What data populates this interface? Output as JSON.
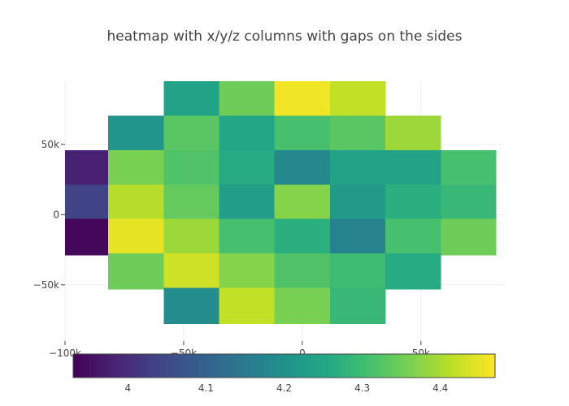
{
  "chart_data": {
    "type": "heatmap",
    "title": "heatmap with x/y/z columns with gaps on the sides",
    "x_tick_labels": [
      "−100k",
      "−50k",
      "0",
      "50k"
    ],
    "x_tick_values": [
      -100000,
      -50000,
      0,
      50000
    ],
    "y_tick_labels": [
      "50k",
      "0",
      "−50k"
    ],
    "y_tick_values": [
      50000,
      0,
      -50000
    ],
    "x_columns": [
      -93500,
      -70100,
      -46700,
      -23400,
      0,
      23400,
      46700,
      70100,
      93500
    ],
    "x_range": [
      -100000,
      85000
    ],
    "y_rows": [
      82000,
      57500,
      33000,
      8500,
      -16000,
      -40500,
      -65000
    ],
    "y_range": [
      -90000,
      95000
    ],
    "cell_x_step": 23400,
    "cell_y_step": 25800,
    "z_range": [
      3.93,
      4.47
    ],
    "colorbar_tick_labels": [
      "4",
      "4.1",
      "4.2",
      "4.3",
      "4.4"
    ],
    "colorbar_tick_values": [
      4.0,
      4.1,
      4.2,
      4.3,
      4.4
    ],
    "colorscale": "viridis",
    "cells": [
      {
        "x": -46700,
        "y": 82000,
        "z": 4.24
      },
      {
        "x": -23400,
        "y": 82000,
        "z": 4.35
      },
      {
        "x": 0,
        "y": 82000,
        "z": 4.46
      },
      {
        "x": 23400,
        "y": 82000,
        "z": 4.42
      },
      {
        "x": -70100,
        "y": 57500,
        "z": 4.21
      },
      {
        "x": -46700,
        "y": 57500,
        "z": 4.33
      },
      {
        "x": -23400,
        "y": 57500,
        "z": 4.25
      },
      {
        "x": 0,
        "y": 57500,
        "z": 4.31
      },
      {
        "x": 23400,
        "y": 57500,
        "z": 4.33
      },
      {
        "x": 46700,
        "y": 57500,
        "z": 4.39
      },
      {
        "x": -93500,
        "y": 33000,
        "z": 3.98
      },
      {
        "x": -70100,
        "y": 33000,
        "z": 4.36
      },
      {
        "x": -46700,
        "y": 33000,
        "z": 4.32
      },
      {
        "x": -23400,
        "y": 33000,
        "z": 4.26
      },
      {
        "x": 0,
        "y": 33000,
        "z": 4.18
      },
      {
        "x": 23400,
        "y": 33000,
        "z": 4.24
      },
      {
        "x": 46700,
        "y": 33000,
        "z": 4.24
      },
      {
        "x": 70100,
        "y": 33000,
        "z": 4.31
      },
      {
        "x": -93500,
        "y": 8500,
        "z": 4.04
      },
      {
        "x": -70100,
        "y": 8500,
        "z": 4.41
      },
      {
        "x": -46700,
        "y": 8500,
        "z": 4.34
      },
      {
        "x": -23400,
        "y": 8500,
        "z": 4.23
      },
      {
        "x": 0,
        "y": 8500,
        "z": 4.37
      },
      {
        "x": 23400,
        "y": 8500,
        "z": 4.22
      },
      {
        "x": 46700,
        "y": 8500,
        "z": 4.27
      },
      {
        "x": 70100,
        "y": 8500,
        "z": 4.29
      },
      {
        "x": -93500,
        "y": -16000,
        "z": 3.94
      },
      {
        "x": -70100,
        "y": -16000,
        "z": 4.45
      },
      {
        "x": -46700,
        "y": -16000,
        "z": 4.39
      },
      {
        "x": -23400,
        "y": -16000,
        "z": 4.31
      },
      {
        "x": 0,
        "y": -16000,
        "z": 4.27
      },
      {
        "x": 23400,
        "y": -16000,
        "z": 4.17
      },
      {
        "x": 46700,
        "y": -16000,
        "z": 4.31
      },
      {
        "x": 70100,
        "y": -16000,
        "z": 4.35
      },
      {
        "x": -70100,
        "y": -40500,
        "z": 4.35
      },
      {
        "x": -46700,
        "y": -40500,
        "z": 4.43
      },
      {
        "x": -23400,
        "y": -40500,
        "z": 4.37
      },
      {
        "x": 0,
        "y": -40500,
        "z": 4.32
      },
      {
        "x": 23400,
        "y": -40500,
        "z": 4.3
      },
      {
        "x": 46700,
        "y": -40500,
        "z": 4.26
      },
      {
        "x": -46700,
        "y": -65000,
        "z": 4.19
      },
      {
        "x": -23400,
        "y": -65000,
        "z": 4.42
      },
      {
        "x": 0,
        "y": -65000,
        "z": 4.36
      },
      {
        "x": 23400,
        "y": -65000,
        "z": 4.29
      }
    ],
    "grid": true
  }
}
